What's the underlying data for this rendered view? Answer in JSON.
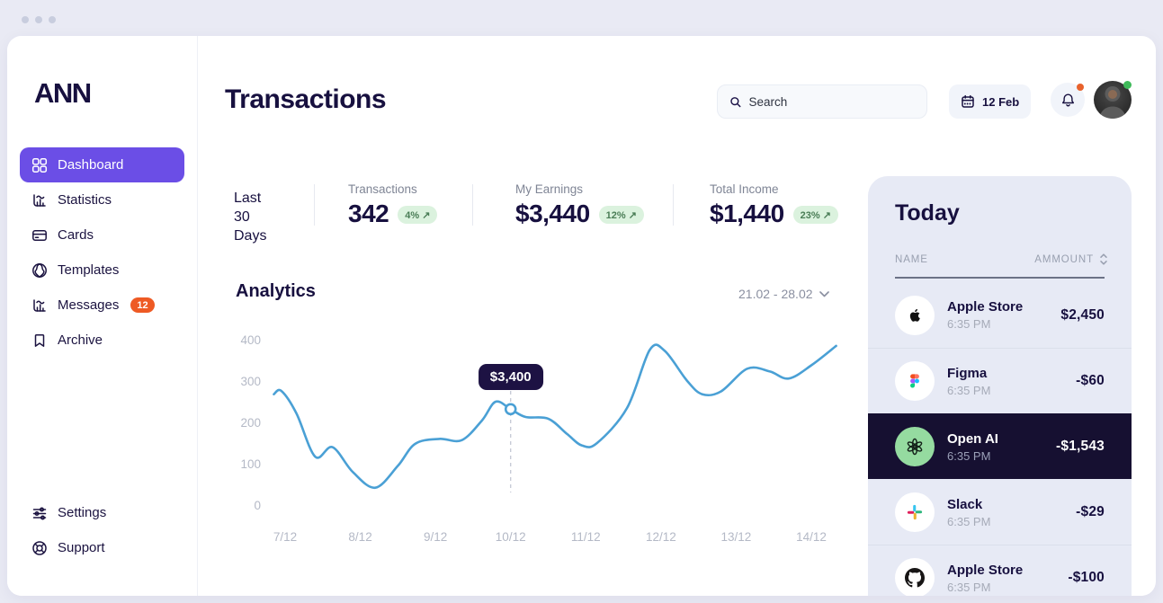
{
  "icons": {
    "trend_up": "↗"
  },
  "sidebar": {
    "logo": "ANN",
    "items": [
      {
        "label": "Dashboard",
        "active": true
      },
      {
        "label": "Statistics"
      },
      {
        "label": "Cards"
      },
      {
        "label": "Templates"
      },
      {
        "label": "Messages",
        "badge": "12"
      },
      {
        "label": "Archive"
      }
    ],
    "footer_items": [
      {
        "label": "Settings"
      },
      {
        "label": "Support"
      }
    ]
  },
  "header": {
    "title": "Transactions",
    "search_placeholder": "Search",
    "date_button": "12 Feb"
  },
  "stats": {
    "period_line1": "Last",
    "period_line2": "30 Days",
    "cards": [
      {
        "label": "Transactions",
        "value": "342",
        "delta": "4%"
      },
      {
        "label": "My Earnings",
        "value": "$3,440",
        "delta": "12%"
      },
      {
        "label": "Total Income",
        "value": "$1,440",
        "delta": "23%"
      }
    ]
  },
  "analytics": {
    "title": "Analytics",
    "range": "21.02 - 28.02"
  },
  "chart_data": {
    "type": "line",
    "title": "Analytics",
    "xlabel": "",
    "ylabel": "",
    "x_tick_labels": [
      "7/12",
      "8/12",
      "9/12",
      "10/12",
      "11/12",
      "12/12",
      "13/12",
      "14/12"
    ],
    "y_ticks": [
      0,
      100,
      200,
      300,
      400
    ],
    "ylim": [
      0,
      400
    ],
    "grid": false,
    "legend": "none",
    "line_color": "#4AA0D5",
    "points": [
      [
        -0.15,
        268
      ],
      [
        -0.05,
        276
      ],
      [
        0.15,
        222
      ],
      [
        0.4,
        117
      ],
      [
        0.63,
        140
      ],
      [
        0.9,
        80
      ],
      [
        1.2,
        42
      ],
      [
        1.5,
        95
      ],
      [
        1.73,
        148
      ],
      [
        2.05,
        160
      ],
      [
        2.35,
        157
      ],
      [
        2.62,
        205
      ],
      [
        2.8,
        250
      ],
      [
        3.0,
        232
      ],
      [
        3.2,
        213
      ],
      [
        3.5,
        209
      ],
      [
        3.75,
        172
      ],
      [
        3.95,
        144
      ],
      [
        4.15,
        150
      ],
      [
        4.55,
        235
      ],
      [
        4.85,
        375
      ],
      [
        5.05,
        373
      ],
      [
        5.35,
        300
      ],
      [
        5.55,
        268
      ],
      [
        5.8,
        275
      ],
      [
        6.15,
        330
      ],
      [
        6.45,
        323
      ],
      [
        6.7,
        306
      ],
      [
        7.0,
        338
      ],
      [
        7.33,
        385
      ]
    ],
    "highlight": {
      "day": 3.0,
      "value": 232,
      "label": "$3,400"
    }
  },
  "today_panel": {
    "title": "Today",
    "columns": {
      "name": "NAME",
      "amount": "AMMOUNT"
    },
    "rows": [
      {
        "name": "Apple Store",
        "time": "6:35 PM",
        "amount": "$2,450",
        "icon": "apple",
        "active": false
      },
      {
        "name": "Figma",
        "time": "6:35 PM",
        "amount": "-$60",
        "icon": "figma",
        "active": false
      },
      {
        "name": "Open AI",
        "time": "6:35 PM",
        "amount": "-$1,543",
        "icon": "openai",
        "active": true
      },
      {
        "name": "Slack",
        "time": "6:35 PM",
        "amount": "-$29",
        "icon": "slack",
        "active": false
      },
      {
        "name": "Apple Store",
        "time": "6:35 PM",
        "amount": "-$100",
        "icon": "github",
        "active": false
      }
    ]
  },
  "colors": {
    "accent_purple": "#6B4EE6",
    "dark_navy": "#17103F",
    "active_row_bg": "#161031",
    "panel_bg": "#E7EAF5",
    "line_blue": "#4AA0D5",
    "badge_green_bg": "#DBF2DE",
    "badge_green_text": "#4A7D56",
    "badge_orange": "#EE5A24",
    "openai_circle": "#95DBA0"
  }
}
